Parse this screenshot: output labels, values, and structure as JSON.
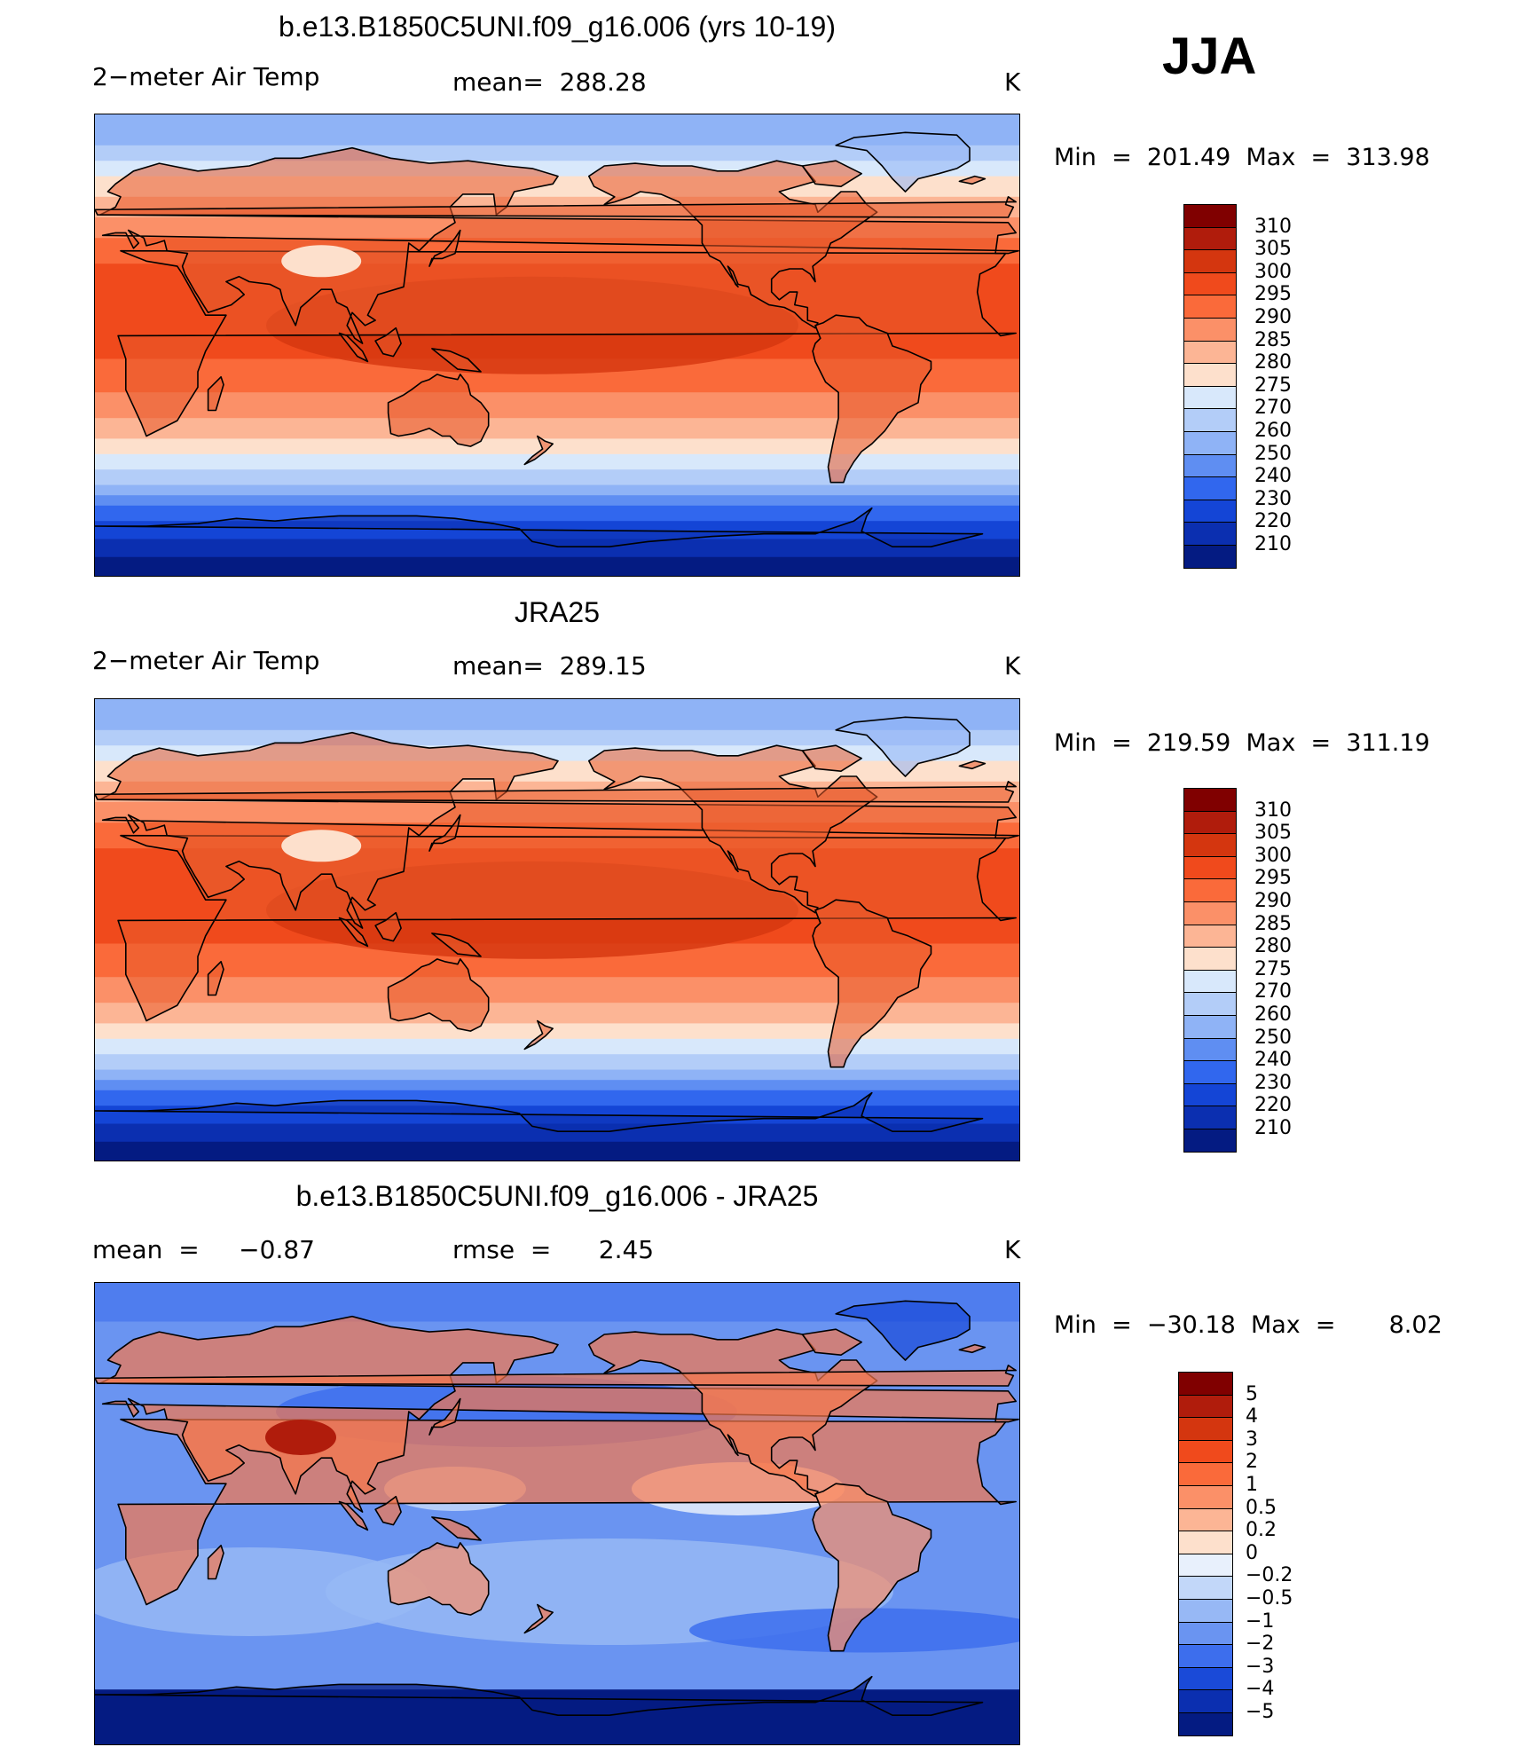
{
  "season": "JJA",
  "panels": [
    {
      "id": "model",
      "title": "b.e13.B1850C5UNI.f09_g16.006 (yrs 10-19)",
      "left_label": "2−meter Air Temp",
      "center_label": "mean=  288.28",
      "units": "K",
      "minmax": "Min  =  201.49  Max  =  313.98",
      "colorbar_labels": [
        "310",
        "305",
        "300",
        "295",
        "290",
        "285",
        "280",
        "275",
        "270",
        "260",
        "250",
        "240",
        "230",
        "220",
        "210"
      ],
      "colors": [
        "#800000",
        "#b01c0c",
        "#d4360f",
        "#f04a1c",
        "#fa6a3a",
        "#fb9068",
        "#fcb595",
        "#fde0cc",
        "#d8e8fb",
        "#b3cdf8",
        "#8fb3f6",
        "#5f8ef2",
        "#3167ee",
        "#1445d6",
        "#0b2fb0",
        "#041b82"
      ]
    },
    {
      "id": "obs",
      "title": "JRA25",
      "left_label": "2−meter Air Temp",
      "center_label": "mean=  289.15",
      "units": "K",
      "minmax": "Min  =  219.59  Max  =  311.19",
      "colorbar_labels": [
        "310",
        "305",
        "300",
        "295",
        "290",
        "285",
        "280",
        "275",
        "270",
        "260",
        "250",
        "240",
        "230",
        "220",
        "210"
      ],
      "colors": [
        "#800000",
        "#b01c0c",
        "#d4360f",
        "#f04a1c",
        "#fa6a3a",
        "#fb9068",
        "#fcb595",
        "#fde0cc",
        "#d8e8fb",
        "#b3cdf8",
        "#8fb3f6",
        "#5f8ef2",
        "#3167ee",
        "#1445d6",
        "#0b2fb0",
        "#041b82"
      ]
    },
    {
      "id": "diff",
      "title": "b.e13.B1850C5UNI.f09_g16.006 - JRA25",
      "left_label": "mean  =     −0.87",
      "center_label": "rmse  =      2.45",
      "units": "K",
      "minmax": "Min  =  −30.18  Max  =       8.02",
      "colorbar_labels": [
        "5",
        "4",
        "3",
        "2",
        "1",
        "0.5",
        "0.2",
        "0",
        "−0.2",
        "−0.5",
        "−1",
        "−2",
        "−3",
        "−4",
        "−5"
      ],
      "colors": [
        "#800000",
        "#b01c0c",
        "#d4360f",
        "#f04a1c",
        "#fa6a3a",
        "#fb9068",
        "#fcb595",
        "#fde0cc",
        "#e8f0fc",
        "#c2d7f9",
        "#97b8f5",
        "#6a94f1",
        "#3d6eed",
        "#1a4ad8",
        "#0b2fb0",
        "#041b82"
      ]
    }
  ]
}
